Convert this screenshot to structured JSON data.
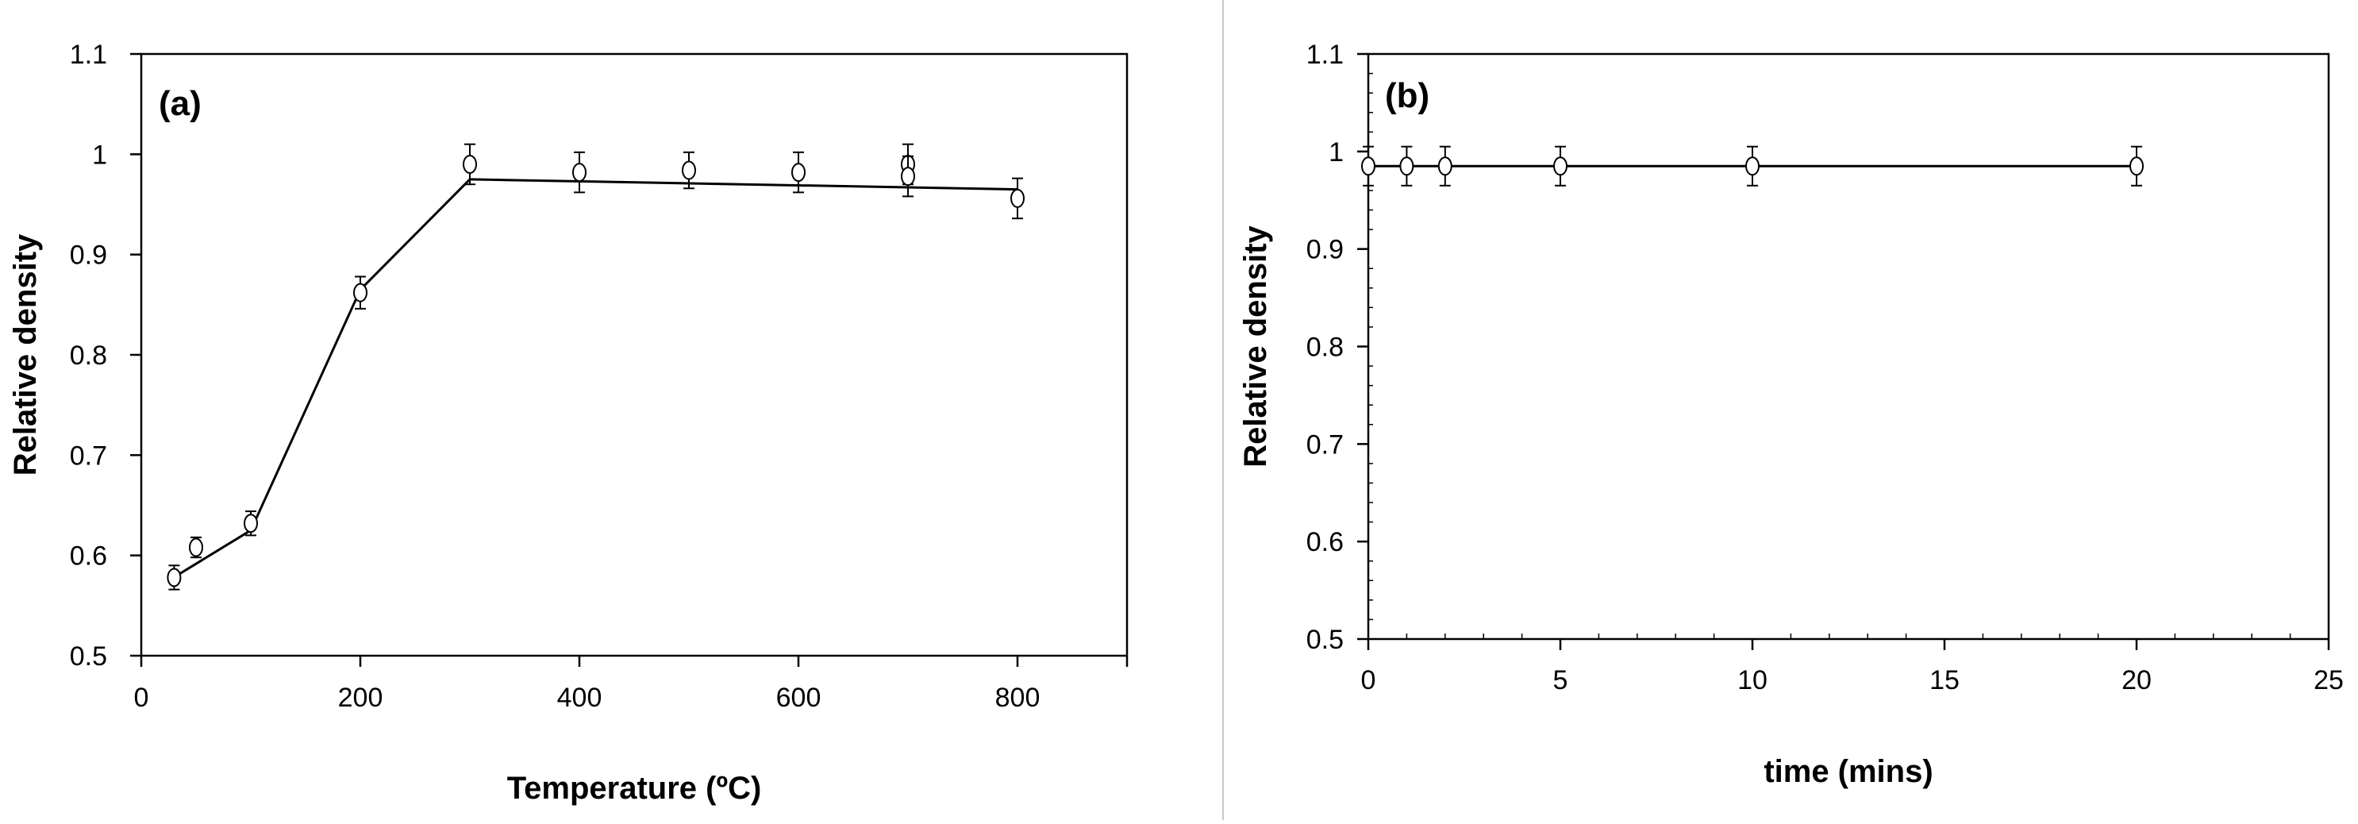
{
  "chart_data": [
    {
      "type": "line",
      "panel_label": "(a)",
      "xlabel": "Temperature (ºC)",
      "ylabel": "Relative density",
      "xlim": [
        0,
        900
      ],
      "ylim": [
        0.5,
        1.1
      ],
      "xticks": [
        0,
        200,
        400,
        600,
        800
      ],
      "yticks": [
        "0.5",
        "0.6",
        "0.7",
        "0.8",
        "0.9",
        "1",
        "1.1"
      ],
      "grid": false,
      "markers": [
        {
          "x": 30,
          "y": 0.578,
          "err": 0.012
        },
        {
          "x": 50,
          "y": 0.608,
          "err": 0.01
        },
        {
          "x": 100,
          "y": 0.632,
          "err": 0.012
        },
        {
          "x": 200,
          "y": 0.862,
          "err": 0.016
        },
        {
          "x": 300,
          "y": 0.99,
          "err": 0.02
        },
        {
          "x": 400,
          "y": 0.982,
          "err": 0.02
        },
        {
          "x": 500,
          "y": 0.984,
          "err": 0.018
        },
        {
          "x": 600,
          "y": 0.982,
          "err": 0.02
        },
        {
          "x": 700,
          "y": 0.99,
          "err": 0.02
        },
        {
          "x": 700,
          "y": 0.978,
          "err": 0.02
        },
        {
          "x": 800,
          "y": 0.956,
          "err": 0.02
        }
      ],
      "line": {
        "x": [
          25,
          100,
          200,
          300,
          800
        ],
        "y": [
          0.575,
          0.625,
          0.865,
          0.975,
          0.965
        ]
      }
    },
    {
      "type": "line",
      "panel_label": "(b)",
      "xlabel": "time (mins)",
      "ylabel": "Relative density",
      "xlim": [
        0,
        25
      ],
      "ylim": [
        0.5,
        1.1
      ],
      "xticks": [
        0,
        5,
        10,
        15,
        20,
        25
      ],
      "yticks": [
        "0.5",
        "0.6",
        "0.7",
        "0.8",
        "0.9",
        "1",
        "1.1"
      ],
      "grid": false,
      "markers": [
        {
          "x": 0,
          "y": 0.985,
          "err": 0.02
        },
        {
          "x": 1,
          "y": 0.985,
          "err": 0.02
        },
        {
          "x": 2,
          "y": 0.985,
          "err": 0.02
        },
        {
          "x": 5,
          "y": 0.985,
          "err": 0.02
        },
        {
          "x": 10,
          "y": 0.985,
          "err": 0.02
        },
        {
          "x": 20,
          "y": 0.985,
          "err": 0.02
        }
      ],
      "line": {
        "x": [
          0,
          20
        ],
        "y": [
          0.985,
          0.985
        ]
      }
    }
  ]
}
